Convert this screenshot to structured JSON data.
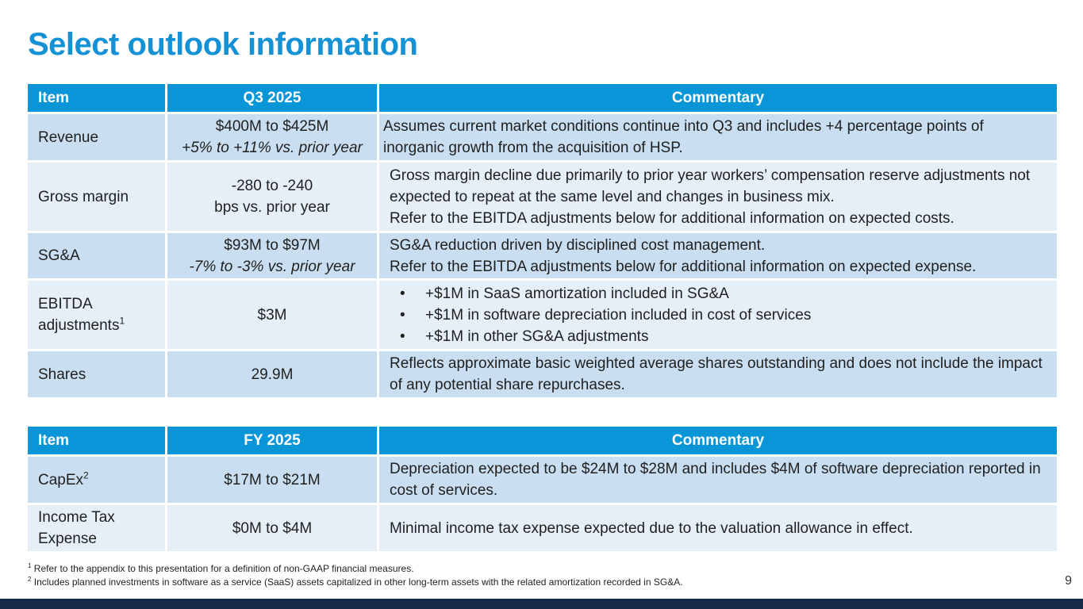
{
  "title": "Select outlook information",
  "quarter_table": {
    "headers": [
      "Item",
      "Q3 2025",
      "Commentary"
    ],
    "rows": [
      {
        "item": "Revenue",
        "value_line1": "$400M to $425M",
        "value_line2": "+5% to +11% vs. prior year",
        "commentary": [
          "Assumes current market conditions continue into Q3 and includes +4 percentage points of inorganic growth from the acquisition of HSP."
        ]
      },
      {
        "item": "Gross margin",
        "value_line1": "-280 to -240",
        "value_line2": "bps vs. prior year",
        "commentary": [
          "Gross margin decline due primarily to prior year workers’ compensation reserve adjustments not expected to repeat at the same level and changes in business mix.",
          "Refer to the EBITDA adjustments below for additional information on expected costs."
        ]
      },
      {
        "item": "SG&A",
        "value_line1": "$93M to $97M",
        "value_line2": "-7% to -3% vs. prior year",
        "commentary": [
          "SG&A reduction driven by disciplined cost management.",
          "Refer to the EBITDA adjustments below for additional information on expected expense."
        ]
      },
      {
        "item": "EBITDA adjustments",
        "item_sup": "1",
        "value": "$3M",
        "bullets": [
          "+$1M in SaaS amortization included in SG&A",
          "+$1M in software depreciation included in cost of services",
          "+$1M in other SG&A adjustments"
        ]
      },
      {
        "item": "Shares",
        "value": "29.9M",
        "commentary": [
          "Reflects approximate basic weighted average shares outstanding and does not include the impact of any potential share repurchases."
        ]
      }
    ]
  },
  "year_table": {
    "headers": [
      "Item",
      "FY 2025",
      "Commentary"
    ],
    "rows": [
      {
        "item": "CapEx",
        "item_sup": "2",
        "value": "$17M to $21M",
        "commentary": "Depreciation expected to be $24M to $28M and includes $4M of software depreciation reported in cost of services."
      },
      {
        "item": "Income Tax Expense",
        "value": "$0M to $4M",
        "commentary": "Minimal income tax expense expected due to the valuation allowance in effect."
      }
    ]
  },
  "footnotes": [
    {
      "num": "1",
      "text": "Refer to the appendix to this presentation for a definition of non-GAAP financial measures."
    },
    {
      "num": "2",
      "text": "Includes planned investments in software as a service (SaaS) assets capitalized in other long-term assets with the related amortization recorded in SG&A."
    }
  ],
  "page_number": "9",
  "colors": {
    "title": "#1592d5",
    "header_bg": "#0996d9",
    "row_dark": "#c9dff1",
    "row_light": "#e6eff8",
    "footer_bar": "#172a47"
  }
}
